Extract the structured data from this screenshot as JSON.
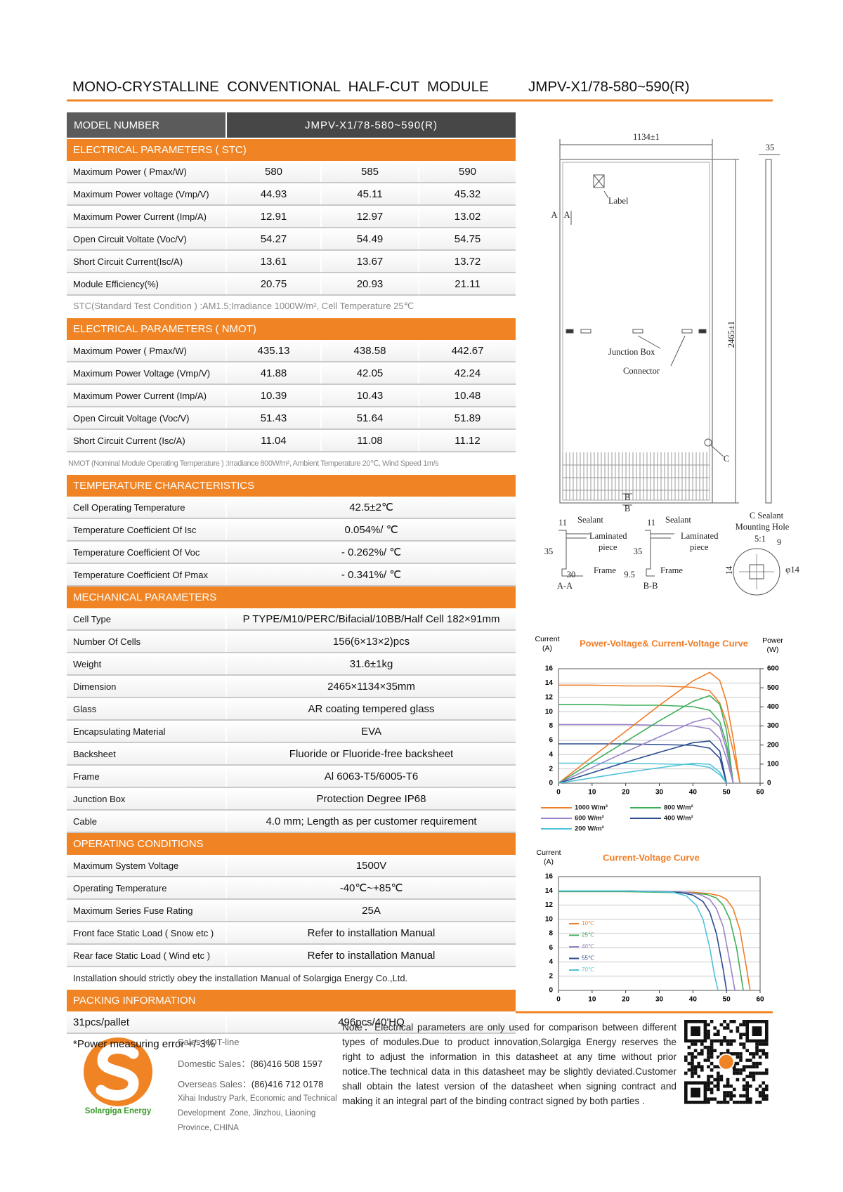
{
  "header": {
    "title": "MONO-CRYSTALLINE  CONVENTIONAL  HALF-CUT  MODULE",
    "model": "JMPV-X1/78-580~590(R)"
  },
  "table": {
    "model_label": "MODEL   NUMBER",
    "model_value": "JMPV-X1/78-580~590(R)",
    "sections": [
      {
        "title": "ELECTRICAL PARAMETERS ( STC)",
        "rows": [
          [
            "Maximum Power ( Pmax/W)",
            "580",
            "585",
            "590"
          ],
          [
            "Maximum Power voltage (Vmp/V)",
            "44.93",
            "45.11",
            "45.32"
          ],
          [
            "Maximum Power Current (Imp/A)",
            "12.91",
            "12.97",
            "13.02"
          ],
          [
            "Open Circuit Voltate (Voc/V)",
            "54.27",
            "54.49",
            "54.75"
          ],
          [
            "Short Circuit Current(Isc/A)",
            "13.61",
            "13.67",
            "13.72"
          ],
          [
            "Module Efficiency(%)",
            "20.75",
            "20.93",
            "21.11"
          ]
        ],
        "note": "STC(Standard Test Condition ) :AM1.5;Irradiance 1000W/m², Cell Temperature 25℃"
      },
      {
        "title": "ELECTRICAL PARAMETERS ( NMOT)",
        "rows": [
          [
            "Maximum Power ( Pmax/W)",
            "435.13",
            "438.58",
            "442.67"
          ],
          [
            "Maximum Power Voltage (Vmp/V)",
            "41.88",
            "42.05",
            "42.24"
          ],
          [
            "Maximum Power Current (Imp/A)",
            "10.39",
            "10.43",
            "10.48"
          ],
          [
            "Open Circuit Voltage (Voc/V)",
            "51.43",
            "51.64",
            "51.89"
          ],
          [
            "Short Circuit Current (Isc/A)",
            "11.04",
            "11.08",
            "11.12"
          ]
        ],
        "note": "NMOT (Nominal Module Operating Temperature ) :Irradiance 800W/m², Ambient Temperature 20℃, Wind Speed 1m/s"
      },
      {
        "title": "TEMPERATURE CHARACTERISTICS",
        "rows": [
          [
            "Cell Operating Temperature",
            "42.5±2℃"
          ],
          [
            "Temperature Coefficient Of Isc",
            "0.054%/ ℃"
          ],
          [
            "Temperature Coefficient Of Voc",
            "- 0.262%/ ℃"
          ],
          [
            "Temperature Coefficient Of Pmax",
            "- 0.341%/ ℃"
          ]
        ]
      },
      {
        "title": "MECHANICAL PARAMETERS",
        "rows": [
          [
            "Cell Type",
            "P TYPE/M10/PERC/Bifacial/10BB/Half Cell 182×91mm"
          ],
          [
            "Number Of Cells",
            "156(6×13×2)pcs"
          ],
          [
            "Weight",
            "31.6±1kg"
          ],
          [
            "Dimension",
            "2465×1134×35mm"
          ],
          [
            "Glass",
            "AR coating tempered glass"
          ],
          [
            "Encapsulating Material",
            "EVA"
          ],
          [
            "Backsheet",
            "Fluoride or Fluoride-free backsheet"
          ],
          [
            "Frame",
            "Al 6063-T5/6005-T6"
          ],
          [
            "Junction Box",
            "Protection Degree IP68"
          ],
          [
            "Cable",
            "4.0 mm;  Length as per customer requirement"
          ]
        ]
      },
      {
        "title": "OPERATING CONDITIONS",
        "rows": [
          [
            "Maximum System Voltage",
            "1500V"
          ],
          [
            "Operating Temperature",
            "-40℃~+85℃"
          ],
          [
            "Maximum Series Fuse Rating",
            "25A"
          ],
          [
            "Front face Static Load ( Snow etc )",
            "Refer to installation  Manual"
          ],
          [
            "Rear face Static Load ( Wind etc )",
            "Refer to installation  Manual"
          ]
        ],
        "note": "Installation should strictly obey the installation Manual of Solargiga  Energy Co.,Ltd."
      },
      {
        "title": "PACKING INFORMATION",
        "rows": [
          [
            "31pcs/pallet",
            "496pcs/40'HQ"
          ]
        ]
      }
    ],
    "footnote": "*Power measuring error  +/-3%"
  },
  "drawing": {
    "width": "1134±1",
    "thickness": "35",
    "length": "2465±1",
    "label": "Label",
    "section_a": [
      "A",
      "A"
    ],
    "junction_box": "Junction Box",
    "connector": "Connector",
    "detail_c": "C",
    "section_b": [
      "B",
      "B"
    ],
    "aa": {
      "dim": "11",
      "sealant": "Sealant",
      "laminated": "Laminated",
      "piece": "piece",
      "height": "35",
      "width": "30",
      "frame": "Frame",
      "name": "A-A"
    },
    "bb": {
      "dim": "11",
      "sealant": "Sealant",
      "laminated": "Laminated",
      "piece": "piece",
      "height": "35",
      "width": "9.5",
      "frame": "Frame",
      "name": "B-B"
    },
    "cc": {
      "sealant": "C Sealant",
      "hole": "Mounting Hole",
      "scale": "5:1",
      "dim": "9",
      "height": "14",
      "diameter": "φ14"
    }
  },
  "chart_data": [
    {
      "type": "line",
      "title": "Power-Voltage& Current-Voltage Curve",
      "ylabel": "Current",
      "yunit": "(A)",
      "y2label": "Power",
      "y2unit": "(W)",
      "x": [
        0,
        10,
        20,
        30,
        40,
        45,
        48,
        50,
        52,
        54
      ],
      "xlim": [
        0,
        60
      ],
      "xticks": [
        0,
        10,
        20,
        30,
        40,
        50,
        60
      ],
      "ylim": [
        0,
        16
      ],
      "yticks": [
        0,
        2,
        4,
        6,
        8,
        10,
        12,
        14,
        16
      ],
      "y2lim": [
        0,
        600
      ],
      "y2ticks": [
        0,
        100,
        200,
        300,
        400,
        500,
        600
      ],
      "grid": true,
      "series": [
        {
          "name": "1000 W/m²",
          "color": "#f07d27",
          "values": [
            13.7,
            13.7,
            13.6,
            13.6,
            13.4,
            12.9,
            11.2,
            8.5,
            4.5,
            0
          ]
        },
        {
          "name": "800 W/m²",
          "color": "#3fae5a",
          "values": [
            11,
            11,
            10.9,
            10.9,
            10.7,
            10.2,
            8.6,
            5.5,
            0,
            null
          ]
        },
        {
          "name": "600 W/m²",
          "color": "#9a83c8",
          "values": [
            8.2,
            8.2,
            8.2,
            8.1,
            8,
            7.6,
            6.2,
            3.5,
            0,
            null
          ]
        },
        {
          "name": "400 W/m²",
          "color": "#2a4b8f",
          "values": [
            5.5,
            5.5,
            5.5,
            5.4,
            5.3,
            4.9,
            3.5,
            0,
            null,
            null
          ]
        },
        {
          "name": "200 W/m²",
          "color": "#4fc3d8",
          "values": [
            2.8,
            2.8,
            2.8,
            2.7,
            2.6,
            2.2,
            1.2,
            0,
            null,
            null
          ]
        },
        {
          "color": "#f07d27",
          "axis": "y2",
          "values": [
            0,
            137,
            272,
            408,
            536,
            581,
            538,
            425,
            234,
            0
          ]
        },
        {
          "color": "#3fae5a",
          "axis": "y2",
          "values": [
            0,
            110,
            218,
            327,
            428,
            459,
            413,
            275,
            0,
            null
          ]
        },
        {
          "color": "#9a83c8",
          "axis": "y2",
          "values": [
            0,
            82,
            164,
            243,
            320,
            342,
            298,
            175,
            0,
            null
          ]
        },
        {
          "color": "#2a4b8f",
          "axis": "y2",
          "values": [
            0,
            55,
            110,
            162,
            212,
            221,
            168,
            0,
            null,
            null
          ]
        },
        {
          "color": "#4fc3d8",
          "axis": "y2",
          "values": [
            0,
            28,
            56,
            81,
            104,
            99,
            58,
            0,
            null,
            null
          ]
        }
      ]
    },
    {
      "type": "line",
      "title": "Current-Voltage Curve",
      "ylabel": "Current",
      "yunit": "(A)",
      "xlim": [
        0,
        60
      ],
      "xticks": [
        0,
        10,
        20,
        30,
        40,
        50,
        60
      ],
      "ylim": [
        0,
        16
      ],
      "yticks": [
        0,
        2,
        4,
        6,
        8,
        10,
        12,
        14,
        16
      ],
      "grid": true,
      "series": [
        {
          "name": "10℃",
          "color": "#f07d27",
          "x": [
            0,
            20,
            40,
            45,
            48,
            50,
            52,
            54,
            56,
            57
          ],
          "values": [
            13.9,
            13.9,
            13.8,
            13.6,
            13.3,
            12.8,
            11.5,
            8.5,
            3,
            0
          ]
        },
        {
          "name": "25℃",
          "color": "#3fae5a",
          "x": [
            0,
            20,
            40,
            44,
            47,
            49,
            51,
            53,
            55
          ],
          "values": [
            13.9,
            13.9,
            13.7,
            13.5,
            13,
            12,
            10,
            6,
            0
          ]
        },
        {
          "name": "40℃",
          "color": "#9a83c8",
          "x": [
            0,
            20,
            38,
            42,
            45,
            47,
            49,
            51,
            52.5
          ],
          "values": [
            14,
            14,
            13.8,
            13.5,
            12.8,
            11.5,
            9,
            4,
            0
          ]
        },
        {
          "name": "55℃",
          "color": "#2a4b8f",
          "x": [
            0,
            20,
            36,
            40,
            43,
            45,
            47,
            49,
            50
          ],
          "values": [
            14,
            14,
            13.8,
            13.4,
            12.5,
            11,
            8,
            3,
            0
          ]
        },
        {
          "name": "70℃",
          "color": "#4fc3d8",
          "x": [
            0,
            20,
            34,
            38,
            41,
            43,
            45,
            46.5,
            47.5
          ],
          "values": [
            14,
            14,
            13.8,
            13.3,
            12,
            10,
            6,
            2,
            0
          ]
        }
      ]
    }
  ],
  "footer": {
    "logo_text": "Solargiga Energy",
    "sales_title": "Sales HOT-line",
    "domestic_label": "Domestic Sales：",
    "domestic": "(86)416 508 1597",
    "overseas_label": "Overseas Sales：",
    "overseas": "(86)416 712 0178",
    "address": [
      "Xihai Industry Park, Economic and Technical",
      "Development  Zone, Jinzhou, Liaoning",
      "Province, CHINA"
    ],
    "note": "Note：Electrical parameters are only used for comparison between different types of modules.Due to product innovation,Solargiga Energy reserves the right to adjust the information in this datasheet at any time without prior notice.The technical data in this datasheet may be slightly deviated.Customer shall obtain the latest version of the datasheet when signing contract and making it an integral part of the binding contract signed by both parties ."
  }
}
